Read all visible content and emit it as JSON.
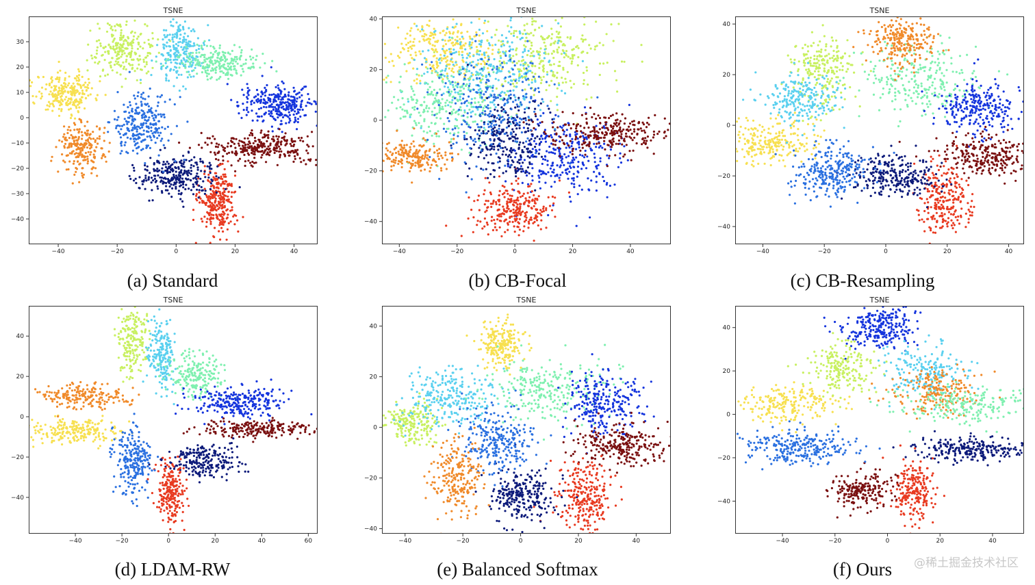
{
  "chart_data": [
    {
      "type": "scatter",
      "title": "TSNE",
      "caption": "(a) Standard",
      "xlim": [
        -50,
        48
      ],
      "ylim": [
        -50,
        40
      ],
      "xticks": [
        -40,
        -20,
        0,
        20,
        40
      ],
      "yticks": [
        -40,
        -30,
        -20,
        -10,
        0,
        10,
        20,
        30
      ],
      "clusters": [
        {
          "color": "#f7e050",
          "center": [
            -37,
            10
          ],
          "spread": [
            5,
            4
          ],
          "points": 240
        },
        {
          "color": "#c8f060",
          "center": [
            -18,
            27
          ],
          "spread": [
            5,
            5
          ],
          "points": 240
        },
        {
          "color": "#5ad0ef",
          "center": [
            1,
            26
          ],
          "spread": [
            4,
            6
          ],
          "points": 220
        },
        {
          "color": "#7ff0b0",
          "center": [
            14,
            22
          ],
          "spread": [
            7,
            3
          ],
          "points": 230
        },
        {
          "color": "#1535dd",
          "center": [
            35,
            5
          ],
          "spread": [
            6,
            4
          ],
          "points": 300
        },
        {
          "color": "#7a1010",
          "center": [
            28,
            -12
          ],
          "spread": [
            9,
            3
          ],
          "points": 300
        },
        {
          "color": "#e83a20",
          "center": [
            14,
            -33
          ],
          "spread": [
            3,
            7
          ],
          "points": 280
        },
        {
          "color": "#0c1a7a",
          "center": [
            0,
            -23
          ],
          "spread": [
            7,
            4
          ],
          "points": 280
        },
        {
          "color": "#2a70e0",
          "center": [
            -11,
            -3
          ],
          "spread": [
            5,
            6
          ],
          "points": 260
        },
        {
          "color": "#f08a2a",
          "center": [
            -32,
            -12
          ],
          "spread": [
            4,
            5
          ],
          "points": 220
        }
      ]
    },
    {
      "type": "scatter",
      "title": "TSNE",
      "caption": "(b) CB-Focal",
      "xlim": [
        -46,
        54
      ],
      "ylim": [
        -49,
        41
      ],
      "xticks": [
        -40,
        -20,
        0,
        20,
        40
      ],
      "yticks": [
        -40,
        -20,
        0,
        20,
        40
      ],
      "clusters": [
        {
          "color": "#f7e050",
          "center": [
            -25,
            28
          ],
          "spread": [
            8,
            6
          ],
          "points": 260
        },
        {
          "color": "#c8f060",
          "center": [
            10,
            25
          ],
          "spread": [
            12,
            8
          ],
          "points": 300
        },
        {
          "color": "#5ad0ef",
          "center": [
            -10,
            20
          ],
          "spread": [
            12,
            10
          ],
          "points": 320
        },
        {
          "color": "#7ff0b0",
          "center": [
            -25,
            5
          ],
          "spread": [
            10,
            8
          ],
          "points": 280
        },
        {
          "color": "#1535dd",
          "center": [
            18,
            -15
          ],
          "spread": [
            10,
            8
          ],
          "points": 300
        },
        {
          "color": "#7a1010",
          "center": [
            32,
            -5
          ],
          "spread": [
            10,
            4
          ],
          "points": 280
        },
        {
          "color": "#e83a20",
          "center": [
            0,
            -35
          ],
          "spread": [
            7,
            5
          ],
          "points": 260
        },
        {
          "color": "#0c1a7a",
          "center": [
            -2,
            -8
          ],
          "spread": [
            6,
            8
          ],
          "points": 260
        },
        {
          "color": "#2a70e0",
          "center": [
            -8,
            5
          ],
          "spread": [
            10,
            10
          ],
          "points": 260
        },
        {
          "color": "#f08a2a",
          "center": [
            -35,
            -14
          ],
          "spread": [
            6,
            3
          ],
          "points": 200
        }
      ]
    },
    {
      "type": "scatter",
      "title": "TSNE",
      "caption": "(c) CB-Resampling",
      "xlim": [
        -49,
        45
      ],
      "ylim": [
        -47,
        43
      ],
      "xticks": [
        -40,
        -20,
        0,
        20,
        40
      ],
      "yticks": [
        -40,
        -20,
        0,
        20,
        40
      ],
      "clusters": [
        {
          "color": "#f7e050",
          "center": [
            -38,
            -7
          ],
          "spread": [
            7,
            4
          ],
          "points": 240
        },
        {
          "color": "#c8f060",
          "center": [
            -20,
            22
          ],
          "spread": [
            5,
            7
          ],
          "points": 220
        },
        {
          "color": "#5ad0ef",
          "center": [
            -28,
            10
          ],
          "spread": [
            6,
            5
          ],
          "points": 220
        },
        {
          "color": "#7ff0b0",
          "center": [
            10,
            18
          ],
          "spread": [
            10,
            7
          ],
          "points": 260
        },
        {
          "color": "#f08a2a",
          "center": [
            5,
            33
          ],
          "spread": [
            5,
            5
          ],
          "points": 240
        },
        {
          "color": "#1535dd",
          "center": [
            30,
            7
          ],
          "spread": [
            6,
            5
          ],
          "points": 260
        },
        {
          "color": "#7a1010",
          "center": [
            33,
            -12
          ],
          "spread": [
            7,
            4
          ],
          "points": 260
        },
        {
          "color": "#e83a20",
          "center": [
            19,
            -30
          ],
          "spread": [
            4,
            7
          ],
          "points": 240
        },
        {
          "color": "#0c1a7a",
          "center": [
            3,
            -20
          ],
          "spread": [
            7,
            4
          ],
          "points": 260
        },
        {
          "color": "#2a70e0",
          "center": [
            -18,
            -18
          ],
          "spread": [
            6,
            5
          ],
          "points": 260
        }
      ]
    },
    {
      "type": "scatter",
      "title": "TSNE",
      "caption": "(d) LDAM-RW",
      "xlim": [
        -60,
        64
      ],
      "ylim": [
        -58,
        55
      ],
      "xticks": [
        -40,
        -20,
        0,
        20,
        40,
        60
      ],
      "yticks": [
        -40,
        -20,
        0,
        20,
        40
      ],
      "clusters": [
        {
          "color": "#f7e050",
          "center": [
            -40,
            -7
          ],
          "spread": [
            10,
            3
          ],
          "points": 220
        },
        {
          "color": "#f08a2a",
          "center": [
            -35,
            10
          ],
          "spread": [
            10,
            3
          ],
          "points": 200
        },
        {
          "color": "#c8f060",
          "center": [
            -15,
            38
          ],
          "spread": [
            3,
            9
          ],
          "points": 200
        },
        {
          "color": "#5ad0ef",
          "center": [
            -3,
            30
          ],
          "spread": [
            3,
            9
          ],
          "points": 200
        },
        {
          "color": "#7ff0b0",
          "center": [
            12,
            20
          ],
          "spread": [
            6,
            6
          ],
          "points": 200
        },
        {
          "color": "#1535dd",
          "center": [
            30,
            7
          ],
          "spread": [
            10,
            4
          ],
          "points": 260
        },
        {
          "color": "#7a1010",
          "center": [
            40,
            -6
          ],
          "spread": [
            12,
            2
          ],
          "points": 220
        },
        {
          "color": "#0c1a7a",
          "center": [
            15,
            -22
          ],
          "spread": [
            7,
            4
          ],
          "points": 220
        },
        {
          "color": "#e83a20",
          "center": [
            1,
            -38
          ],
          "spread": [
            3,
            8
          ],
          "points": 220
        },
        {
          "color": "#2a70e0",
          "center": [
            -15,
            -22
          ],
          "spread": [
            4,
            8
          ],
          "points": 240
        }
      ]
    },
    {
      "type": "scatter",
      "title": "TSNE",
      "caption": "(e) Balanced Softmax",
      "xlim": [
        -48,
        52
      ],
      "ylim": [
        -42,
        48
      ],
      "xticks": [
        -40,
        -20,
        0,
        20,
        40
      ],
      "yticks": [
        -40,
        -20,
        0,
        20,
        40
      ],
      "clusters": [
        {
          "color": "#f7e050",
          "center": [
            -7,
            33
          ],
          "spread": [
            4,
            5
          ],
          "points": 220
        },
        {
          "color": "#c8f060",
          "center": [
            -38,
            2
          ],
          "spread": [
            5,
            4
          ],
          "points": 200
        },
        {
          "color": "#5ad0ef",
          "center": [
            -25,
            12
          ],
          "spread": [
            8,
            6
          ],
          "points": 260
        },
        {
          "color": "#7ff0b0",
          "center": [
            10,
            15
          ],
          "spread": [
            10,
            6
          ],
          "points": 260
        },
        {
          "color": "#1535dd",
          "center": [
            28,
            10
          ],
          "spread": [
            6,
            6
          ],
          "points": 260
        },
        {
          "color": "#7a1010",
          "center": [
            35,
            -7
          ],
          "spread": [
            8,
            4
          ],
          "points": 260
        },
        {
          "color": "#e83a20",
          "center": [
            22,
            -28
          ],
          "spread": [
            5,
            7
          ],
          "points": 260
        },
        {
          "color": "#0c1a7a",
          "center": [
            0,
            -27
          ],
          "spread": [
            6,
            5
          ],
          "points": 260
        },
        {
          "color": "#2a70e0",
          "center": [
            -8,
            -5
          ],
          "spread": [
            7,
            7
          ],
          "points": 260
        },
        {
          "color": "#f08a2a",
          "center": [
            -22,
            -20
          ],
          "spread": [
            4,
            7
          ],
          "points": 220
        }
      ]
    },
    {
      "type": "scatter",
      "title": "TSNE",
      "caption": "(f) Ours",
      "xlim": [
        -58,
        52
      ],
      "ylim": [
        -55,
        50
      ],
      "xticks": [
        -40,
        -20,
        0,
        20,
        40
      ],
      "yticks": [
        -40,
        -20,
        0,
        20,
        40
      ],
      "clusters": [
        {
          "color": "#1535dd",
          "center": [
            -3,
            40
          ],
          "spread": [
            7,
            5
          ],
          "points": 260
        },
        {
          "color": "#f7e050",
          "center": [
            -38,
            5
          ],
          "spread": [
            10,
            4
          ],
          "points": 220
        },
        {
          "color": "#c8f060",
          "center": [
            -18,
            22
          ],
          "spread": [
            6,
            6
          ],
          "points": 200
        },
        {
          "color": "#5ad0ef",
          "center": [
            15,
            20
          ],
          "spread": [
            8,
            6
          ],
          "points": 200
        },
        {
          "color": "#f08a2a",
          "center": [
            20,
            10
          ],
          "spread": [
            8,
            5
          ],
          "points": 200
        },
        {
          "color": "#7ff0b0",
          "center": [
            30,
            4
          ],
          "spread": [
            12,
            4
          ],
          "points": 220
        },
        {
          "color": "#0c1a7a",
          "center": [
            30,
            -16
          ],
          "spread": [
            10,
            3
          ],
          "points": 240
        },
        {
          "color": "#e83a20",
          "center": [
            10,
            -35
          ],
          "spread": [
            4,
            7
          ],
          "points": 220
        },
        {
          "color": "#7a1010",
          "center": [
            -10,
            -35
          ],
          "spread": [
            6,
            4
          ],
          "points": 200
        },
        {
          "color": "#2a70e0",
          "center": [
            -35,
            -15
          ],
          "spread": [
            12,
            4
          ],
          "points": 260
        }
      ]
    }
  ],
  "watermark": "@稀土掘金技术社区"
}
